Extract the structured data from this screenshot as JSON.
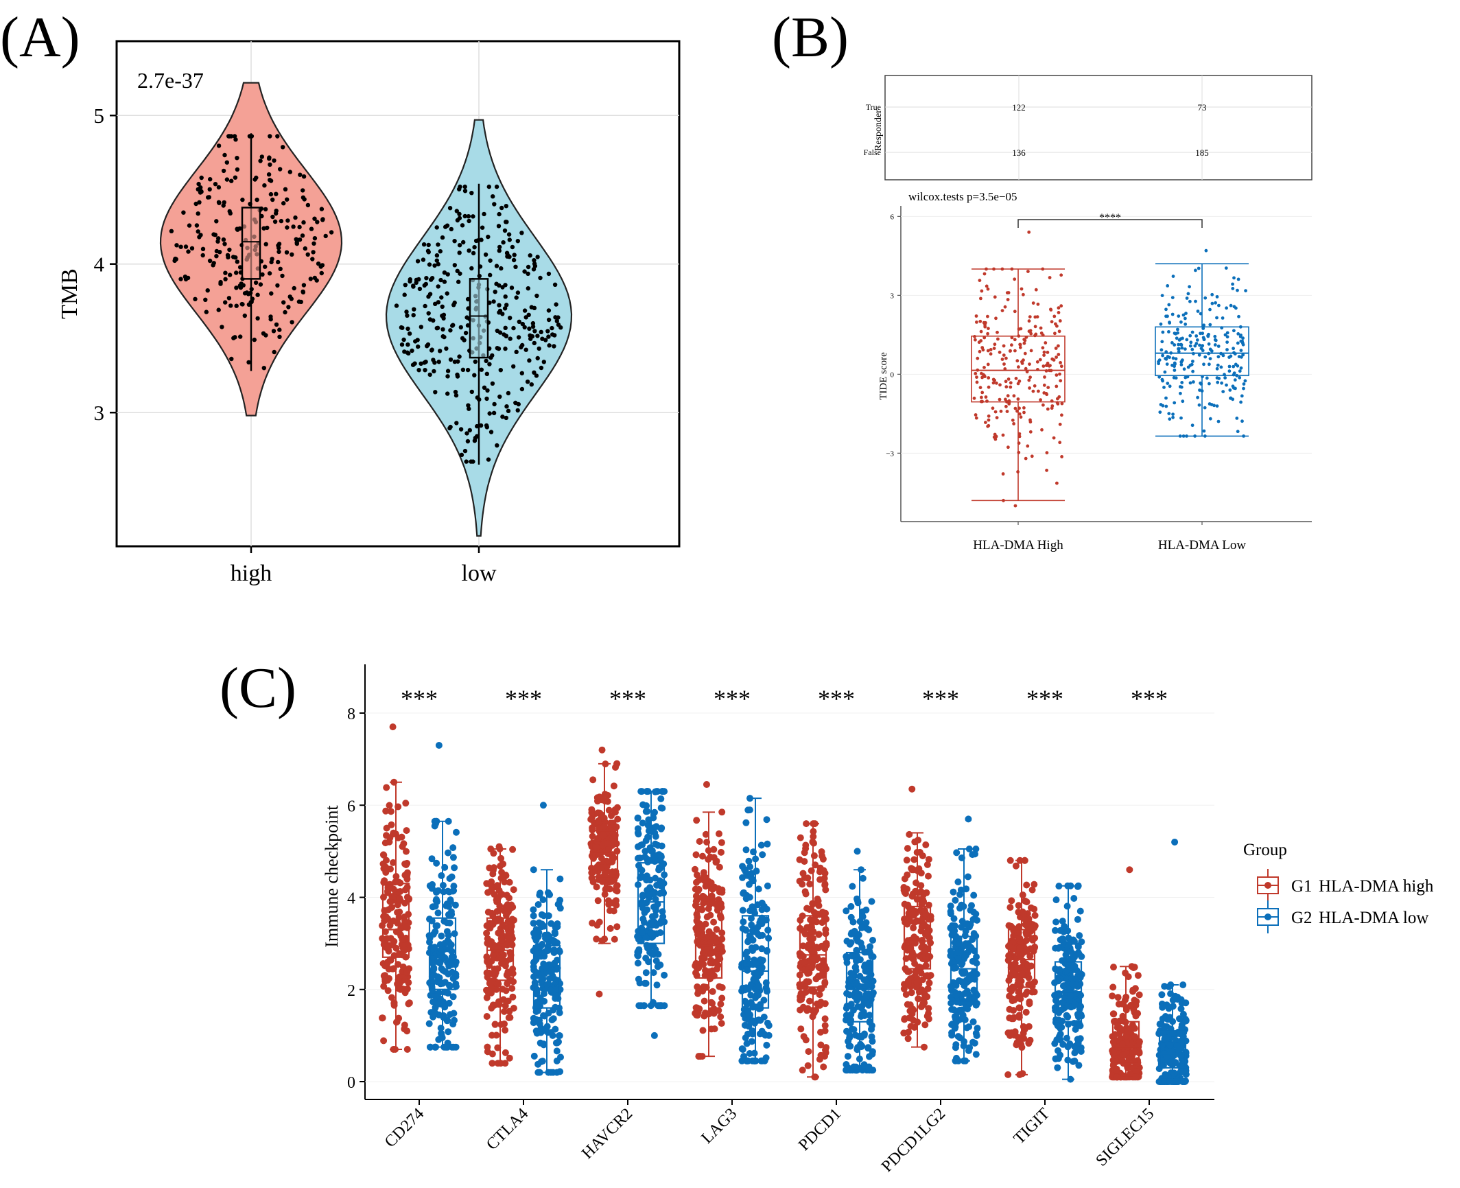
{
  "colors": {
    "high_fill": "#f4a196",
    "low_fill": "#a8dbe7",
    "g1": "#c0392b",
    "g2": "#0b6fba",
    "grid": "#dddddd",
    "points": "#000000"
  },
  "chart_data": [
    {
      "panel": "(A)",
      "type": "violin",
      "pvalue": "2.7e-37",
      "ylabel": "TMB",
      "xlabel": "",
      "categories": [
        "high",
        "low"
      ],
      "ylim": [
        2.1,
        5.5
      ],
      "yticks": [
        "3",
        "4",
        "5"
      ],
      "grid": true,
      "series": [
        {
          "group": "high",
          "min": 2.98,
          "q1": 3.9,
          "median": 4.15,
          "q3": 4.38,
          "max": 5.22,
          "whisker_low": 3.28,
          "whisker_high": 4.88,
          "n_points": 260
        },
        {
          "group": "low",
          "min": 2.17,
          "q1": 3.37,
          "median": 3.65,
          "q3": 3.9,
          "max": 4.97,
          "whisker_low": 2.65,
          "whisker_high": 4.54,
          "n_points": 360
        }
      ]
    },
    {
      "panel": "(B)",
      "type": "table",
      "ylabel": "Responder",
      "rows": [
        "True",
        "False"
      ],
      "columns": [
        "HLA-DMA High",
        "HLA-DMA Low"
      ],
      "values": [
        [
          "122",
          "73"
        ],
        [
          "136",
          "185"
        ]
      ]
    },
    {
      "panel": "(B)",
      "type": "box",
      "title": "wilcox.tests p=3.5e−05",
      "significance": "****",
      "ylabel": "TIDE score",
      "categories": [
        "HLA-DMA High",
        "HLA-DMA Low"
      ],
      "ylim": [
        -5.6,
        6.4
      ],
      "yticks": [
        "6",
        "3",
        "0",
        "−3"
      ],
      "series": [
        {
          "group": "HLA-DMA High",
          "whisker_low": -4.8,
          "q1": -1.05,
          "median": 0.15,
          "q3": 1.45,
          "whisker_high": 4.0,
          "outliers": [
            5.4,
            -5.0
          ],
          "n_points": 258
        },
        {
          "group": "HLA-DMA Low",
          "whisker_low": -2.35,
          "q1": -0.05,
          "median": 0.8,
          "q3": 1.8,
          "whisker_high": 4.2,
          "outliers": [
            4.7
          ],
          "n_points": 258
        }
      ]
    },
    {
      "panel": "(C)",
      "type": "box",
      "ylabel": "Immune checkpoint",
      "categories": [
        "CD274",
        "CTLA4",
        "HAVCR2",
        "LAG3",
        "PDCD1",
        "PDCD1LG2",
        "TIGIT",
        "SIGLEC15"
      ],
      "significance": [
        "***",
        "***",
        "***",
        "***",
        "***",
        "***",
        "***",
        "***"
      ],
      "ylim": [
        -0.4,
        8.8
      ],
      "yticks": [
        "0",
        "2",
        "4",
        "6",
        "8"
      ],
      "legend": {
        "title": "Group",
        "items": [
          {
            "key": "G1",
            "label": "HLA-DMA high"
          },
          {
            "key": "G2",
            "label": "HLA-DMA low"
          }
        ],
        "position": "right"
      },
      "series": [
        {
          "name": "G1",
          "boxes": [
            {
              "wl": 0.7,
              "q1": 2.7,
              "med": 3.3,
              "q3": 4.3,
              "wh": 6.5,
              "max": 7.7
            },
            {
              "wl": 0.4,
              "q1": 2.2,
              "med": 2.85,
              "q3": 3.55,
              "wh": 5.05,
              "max": 5.1
            },
            {
              "wl": 3.0,
              "q1": 4.45,
              "med": 4.95,
              "q3": 5.45,
              "wh": 6.9,
              "max": 7.2,
              "min": 1.9
            },
            {
              "wl": 0.55,
              "q1": 2.25,
              "med": 2.95,
              "q3": 3.85,
              "wh": 5.85,
              "max": 6.45
            },
            {
              "wl": 0.1,
              "q1": 2.05,
              "med": 2.75,
              "q3": 3.6,
              "wh": 5.6,
              "max": 5.6
            },
            {
              "wl": 0.75,
              "q1": 2.45,
              "med": 3.05,
              "q3": 3.8,
              "wh": 5.4,
              "max": 6.35
            },
            {
              "wl": 0.15,
              "q1": 2.05,
              "med": 2.65,
              "q3": 3.3,
              "wh": 4.8,
              "max": 4.8
            },
            {
              "wl": 0.1,
              "q1": 0.4,
              "med": 0.75,
              "q3": 1.3,
              "wh": 2.5,
              "max": 4.6
            }
          ]
        },
        {
          "name": "G2",
          "boxes": [
            {
              "wl": 0.75,
              "q1": 2.0,
              "med": 2.6,
              "q3": 3.55,
              "wh": 5.65,
              "max": 7.3
            },
            {
              "wl": 0.2,
              "q1": 1.6,
              "med": 2.25,
              "q3": 2.95,
              "wh": 4.6,
              "max": 6.0
            },
            {
              "wl": 1.65,
              "q1": 3.0,
              "med": 3.9,
              "q3": 4.75,
              "wh": 6.3,
              "max": 6.3,
              "min": 1.0
            },
            {
              "wl": 0.45,
              "q1": 1.6,
              "med": 2.4,
              "q3": 3.6,
              "wh": 6.15,
              "max": 6.15
            },
            {
              "wl": 0.25,
              "q1": 1.3,
              "med": 2.0,
              "q3": 2.8,
              "wh": 4.6,
              "max": 5.0
            },
            {
              "wl": 0.45,
              "q1": 1.75,
              "med": 2.45,
              "q3": 3.15,
              "wh": 5.05,
              "max": 5.7
            },
            {
              "wl": 0.05,
              "q1": 1.3,
              "med": 1.95,
              "q3": 2.6,
              "wh": 4.25,
              "max": 4.25
            },
            {
              "wl": 0.0,
              "q1": 0.3,
              "med": 0.6,
              "q3": 1.1,
              "wh": 2.1,
              "max": 5.2
            }
          ]
        }
      ]
    }
  ],
  "labels": {
    "panel_a": "(A)",
    "panel_b": "(B)",
    "panel_c": "(C)"
  }
}
